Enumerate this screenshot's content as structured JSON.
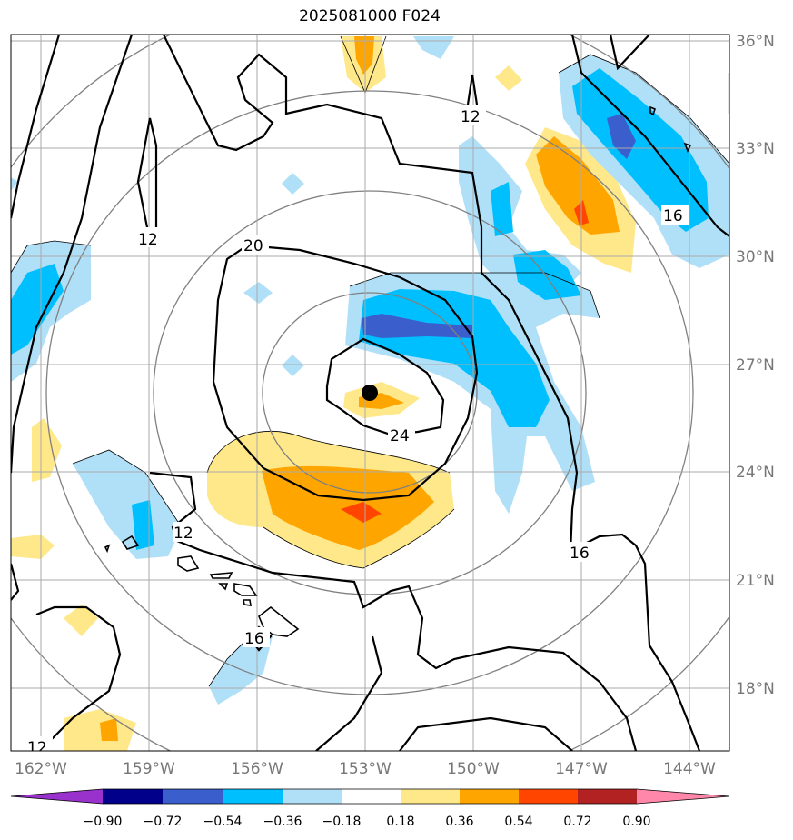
{
  "title": "2025081000 F024",
  "map": {
    "lat_labels": [
      "36°N",
      "33°N",
      "30°N",
      "27°N",
      "24°N",
      "21°N",
      "18°N"
    ],
    "lon_labels": [
      "162°W",
      "159°W",
      "156°W",
      "153°W",
      "150°W",
      "147°W",
      "144°W"
    ],
    "contour_labels": [
      "12",
      "12",
      "12",
      "12",
      "16",
      "16",
      "16",
      "20",
      "24"
    ],
    "colors": {
      "neg_090": "#9932cc",
      "neg_072": "#00008b",
      "neg_054": "#3a5fcd",
      "neg_036": "#00bfff",
      "neg_018": "#b0e0f8",
      "neutral": "#ffffff",
      "pos_018": "#ffe88a",
      "pos_036": "#ffa500",
      "pos_054": "#ff4500",
      "pos_072": "#b22222",
      "pos_090": "#ff88aa"
    }
  },
  "colorbar": {
    "ticks": [
      "−0.90",
      "−0.72",
      "−0.54",
      "−0.36",
      "−0.18",
      "0.18",
      "0.36",
      "0.54",
      "0.72",
      "0.90"
    ]
  }
}
